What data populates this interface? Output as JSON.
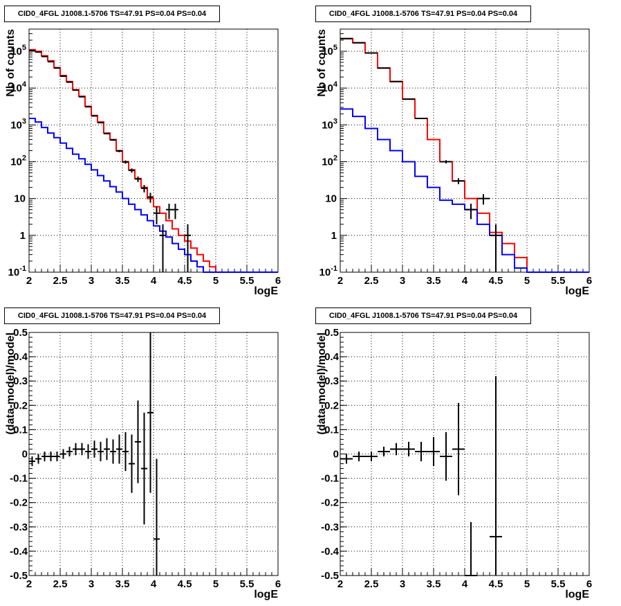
{
  "colors": {
    "model_total": "#ff0000",
    "model_source": "#0000ff",
    "data": "#000000",
    "grid": "#000000"
  },
  "chart_data": [
    {
      "type": "line",
      "panel": "top-left",
      "title": "CID0_4FGL J1008.1-5706 TS=47.91 PS=0.04 PS=0.04",
      "xlabel": "logE",
      "ylabel": "Nb of counts",
      "xlim": [
        2,
        6
      ],
      "ylim": [
        0.1,
        400000
      ],
      "yscale": "log",
      "grid": true,
      "xticks": [
        "2",
        "2.5",
        "3",
        "3.5",
        "4",
        "4.5",
        "5",
        "5.5",
        "6"
      ],
      "yticks": [
        "10^-1",
        "1",
        "10",
        "10^2",
        "10^3",
        "10^4",
        "10^5"
      ],
      "series": [
        {
          "role": "model_total",
          "bin_width": 0.1,
          "x": [
            2.0,
            2.1,
            2.2,
            2.3,
            2.4,
            2.5,
            2.6,
            2.7,
            2.8,
            2.9,
            3.0,
            3.1,
            3.2,
            3.3,
            3.4,
            3.5,
            3.6,
            3.7,
            3.8,
            3.9,
            4.0,
            4.1,
            4.2,
            4.3,
            4.4,
            4.5,
            4.6,
            4.7,
            4.8,
            4.9,
            5.0,
            5.1,
            5.2,
            5.3,
            5.4,
            5.5,
            5.6,
            5.7,
            5.8,
            5.9
          ],
          "values": [
            110000,
            100000,
            75000,
            55000,
            36000,
            22000,
            15000,
            9000,
            6000,
            3200,
            1800,
            1200,
            600,
            400,
            200,
            100,
            60,
            35,
            20,
            10,
            6,
            4,
            2.5,
            1.5,
            1,
            0.7,
            0.45,
            0.3,
            0.2,
            0.14,
            0.1,
            0.1,
            0.1,
            0.1,
            0.1,
            0.1,
            0.1,
            0.1,
            0.1,
            0.1
          ]
        },
        {
          "role": "model_source",
          "bin_width": 0.1,
          "x": [
            2.0,
            2.1,
            2.2,
            2.3,
            2.4,
            2.5,
            2.6,
            2.7,
            2.8,
            2.9,
            3.0,
            3.1,
            3.2,
            3.3,
            3.4,
            3.5,
            3.6,
            3.7,
            3.8,
            3.9,
            4.0,
            4.1,
            4.2,
            4.3,
            4.4,
            4.5,
            4.6,
            4.7,
            4.8,
            4.9,
            5.0,
            5.1,
            5.2,
            5.3,
            5.4,
            5.5,
            5.6,
            5.7,
            5.8,
            5.9
          ],
          "values": [
            1500,
            1200,
            850,
            600,
            450,
            320,
            230,
            160,
            120,
            85,
            60,
            42,
            30,
            21,
            15,
            10,
            7,
            5,
            3.6,
            2.5,
            1.8,
            1.3,
            0.9,
            0.6,
            0.42,
            0.3,
            0.2,
            0.14,
            0.1,
            0.1,
            0.1,
            0.1,
            0.1,
            0.1,
            0.1,
            0.1,
            0.1,
            0.1,
            0.1,
            0.1
          ]
        },
        {
          "role": "data",
          "x": [
            2.05,
            2.15,
            2.25,
            2.35,
            2.45,
            2.55,
            2.65,
            2.75,
            2.85,
            2.95,
            3.05,
            3.15,
            3.25,
            3.35,
            3.45,
            3.55,
            3.65,
            3.75,
            3.85,
            3.95,
            4.05,
            4.15,
            4.25,
            4.35,
            4.45,
            4.55
          ],
          "values": [
            105000,
            95000,
            72000,
            52000,
            35000,
            21000,
            14500,
            8800,
            5800,
            3100,
            1750,
            1150,
            580,
            390,
            195,
            98,
            58,
            34,
            19,
            11,
            4,
            1,
            5,
            5,
            null,
            1
          ],
          "xerr": 0.05
        }
      ]
    },
    {
      "type": "line",
      "panel": "top-right",
      "title": "CID0_4FGL J1008.1-5706 TS=47.91 PS=0.04 PS=0.04",
      "xlabel": "logE",
      "ylabel": "Nb of counts",
      "xlim": [
        2,
        6
      ],
      "ylim": [
        0.1,
        400000
      ],
      "yscale": "log",
      "grid": true,
      "xticks": [
        "2",
        "2.5",
        "3",
        "3.5",
        "4",
        "4.5",
        "5",
        "5.5",
        "6"
      ],
      "yticks": [
        "10^-1",
        "1",
        "10",
        "10^2",
        "10^3",
        "10^4",
        "10^5"
      ],
      "series": [
        {
          "role": "model_total",
          "bin_width": 0.2,
          "x": [
            2.0,
            2.2,
            2.4,
            2.6,
            2.8,
            3.0,
            3.2,
            3.4,
            3.6,
            3.8,
            4.0,
            4.2,
            4.4,
            4.6,
            4.8,
            5.0,
            5.2,
            5.4,
            5.6,
            5.8
          ],
          "values": [
            220000,
            170000,
            90000,
            35000,
            15000,
            5000,
            1500,
            400,
            100,
            30,
            10,
            4,
            1.2,
            0.6,
            0.25,
            0.1,
            0.1,
            0.1,
            0.1,
            0.1
          ]
        },
        {
          "role": "model_source",
          "bin_width": 0.2,
          "x": [
            2.0,
            2.2,
            2.4,
            2.6,
            2.8,
            3.0,
            3.2,
            3.4,
            3.6,
            3.8,
            4.0,
            4.2,
            4.4,
            4.6,
            4.8,
            5.0,
            5.2,
            5.4,
            5.6,
            5.8
          ],
          "values": [
            2700,
            1700,
            800,
            400,
            200,
            100,
            40,
            20,
            9,
            7,
            5,
            2,
            1,
            0.3,
            0.13,
            0.1,
            0.1,
            0.1,
            0.1,
            0.1
          ]
        },
        {
          "role": "data",
          "x": [
            2.1,
            2.3,
            2.5,
            2.7,
            2.9,
            3.1,
            3.3,
            3.5,
            3.7,
            3.9,
            4.1,
            4.3,
            4.5
          ],
          "values": [
            220000,
            170000,
            90000,
            35000,
            15000,
            5000,
            1500,
            null,
            100,
            30,
            5,
            10,
            1
          ],
          "xerr": 0.1
        }
      ]
    },
    {
      "type": "scatter",
      "panel": "bottom-left",
      "title": "CID0_4FGL J1008.1-5706 TS=47.91 PS=0.04 PS=0.04",
      "xlabel": "logE",
      "ylabel": "(data-model)/model",
      "xlim": [
        2,
        6
      ],
      "ylim": [
        -0.5,
        0.5
      ],
      "grid": true,
      "xticks": [
        "2",
        "2.5",
        "3",
        "3.5",
        "4",
        "4.5",
        "5",
        "5.5",
        "6"
      ],
      "yticks": [
        "-0.5",
        "-0.4",
        "-0.3",
        "-0.2",
        "-0.1",
        "0",
        "0.1",
        "0.2",
        "0.3",
        "0.4",
        "0.5"
      ],
      "points": [
        {
          "x": 2.05,
          "y": -0.03,
          "err": 0.02
        },
        {
          "x": 2.15,
          "y": -0.02,
          "err": 0.02
        },
        {
          "x": 2.25,
          "y": -0.01,
          "err": 0.02
        },
        {
          "x": 2.35,
          "y": -0.01,
          "err": 0.02
        },
        {
          "x": 2.45,
          "y": -0.01,
          "err": 0.02
        },
        {
          "x": 2.55,
          "y": 0.0,
          "err": 0.02
        },
        {
          "x": 2.65,
          "y": 0.01,
          "err": 0.02
        },
        {
          "x": 2.75,
          "y": 0.02,
          "err": 0.025
        },
        {
          "x": 2.85,
          "y": 0.02,
          "err": 0.025
        },
        {
          "x": 2.95,
          "y": 0.01,
          "err": 0.03
        },
        {
          "x": 3.05,
          "y": 0.02,
          "err": 0.035
        },
        {
          "x": 3.15,
          "y": 0.01,
          "err": 0.04
        },
        {
          "x": 3.25,
          "y": 0.02,
          "err": 0.045
        },
        {
          "x": 3.35,
          "y": 0.01,
          "err": 0.05
        },
        {
          "x": 3.45,
          "y": 0.02,
          "err": 0.06
        },
        {
          "x": 3.55,
          "y": 0.01,
          "err": 0.08
        },
        {
          "x": 3.65,
          "y": -0.04,
          "err": 0.12
        },
        {
          "x": 3.75,
          "y": 0.05,
          "err": 0.17
        },
        {
          "x": 3.85,
          "y": -0.06,
          "err": 0.23
        },
        {
          "x": 3.95,
          "y": 0.17,
          "err": 0.33
        },
        {
          "x": 4.05,
          "y": -0.35,
          "err": 0.33
        }
      ]
    },
    {
      "type": "scatter",
      "panel": "bottom-right",
      "title": "CID0_4FGL J1008.1-5706 TS=47.91 PS=0.04 PS=0.04",
      "xlabel": "logE",
      "ylabel": "(data-model)/model",
      "xlim": [
        2,
        6
      ],
      "ylim": [
        -0.5,
        0.5
      ],
      "grid": true,
      "xticks": [
        "2",
        "2.5",
        "3",
        "3.5",
        "4",
        "4.5",
        "5",
        "5.5",
        "6"
      ],
      "yticks": [
        "-0.5",
        "-0.4",
        "-0.3",
        "-0.2",
        "-0.1",
        "0",
        "0.1",
        "0.2",
        "0.3",
        "0.4",
        "0.5"
      ],
      "points": [
        {
          "x": 2.1,
          "y": -0.02,
          "err": 0.02
        },
        {
          "x": 2.3,
          "y": -0.01,
          "err": 0.02
        },
        {
          "x": 2.5,
          "y": -0.01,
          "err": 0.02
        },
        {
          "x": 2.7,
          "y": 0.01,
          "err": 0.02
        },
        {
          "x": 2.9,
          "y": 0.02,
          "err": 0.025
        },
        {
          "x": 3.1,
          "y": 0.02,
          "err": 0.03
        },
        {
          "x": 3.3,
          "y": 0.01,
          "err": 0.04
        },
        {
          "x": 3.5,
          "y": 0.01,
          "err": 0.06
        },
        {
          "x": 3.7,
          "y": -0.01,
          "err": 0.1
        },
        {
          "x": 3.9,
          "y": 0.02,
          "err": 0.19
        },
        {
          "x": 4.1,
          "y": -0.5,
          "err": 0.22
        },
        {
          "x": 4.5,
          "y": -0.34,
          "err": 0.66
        }
      ]
    }
  ]
}
